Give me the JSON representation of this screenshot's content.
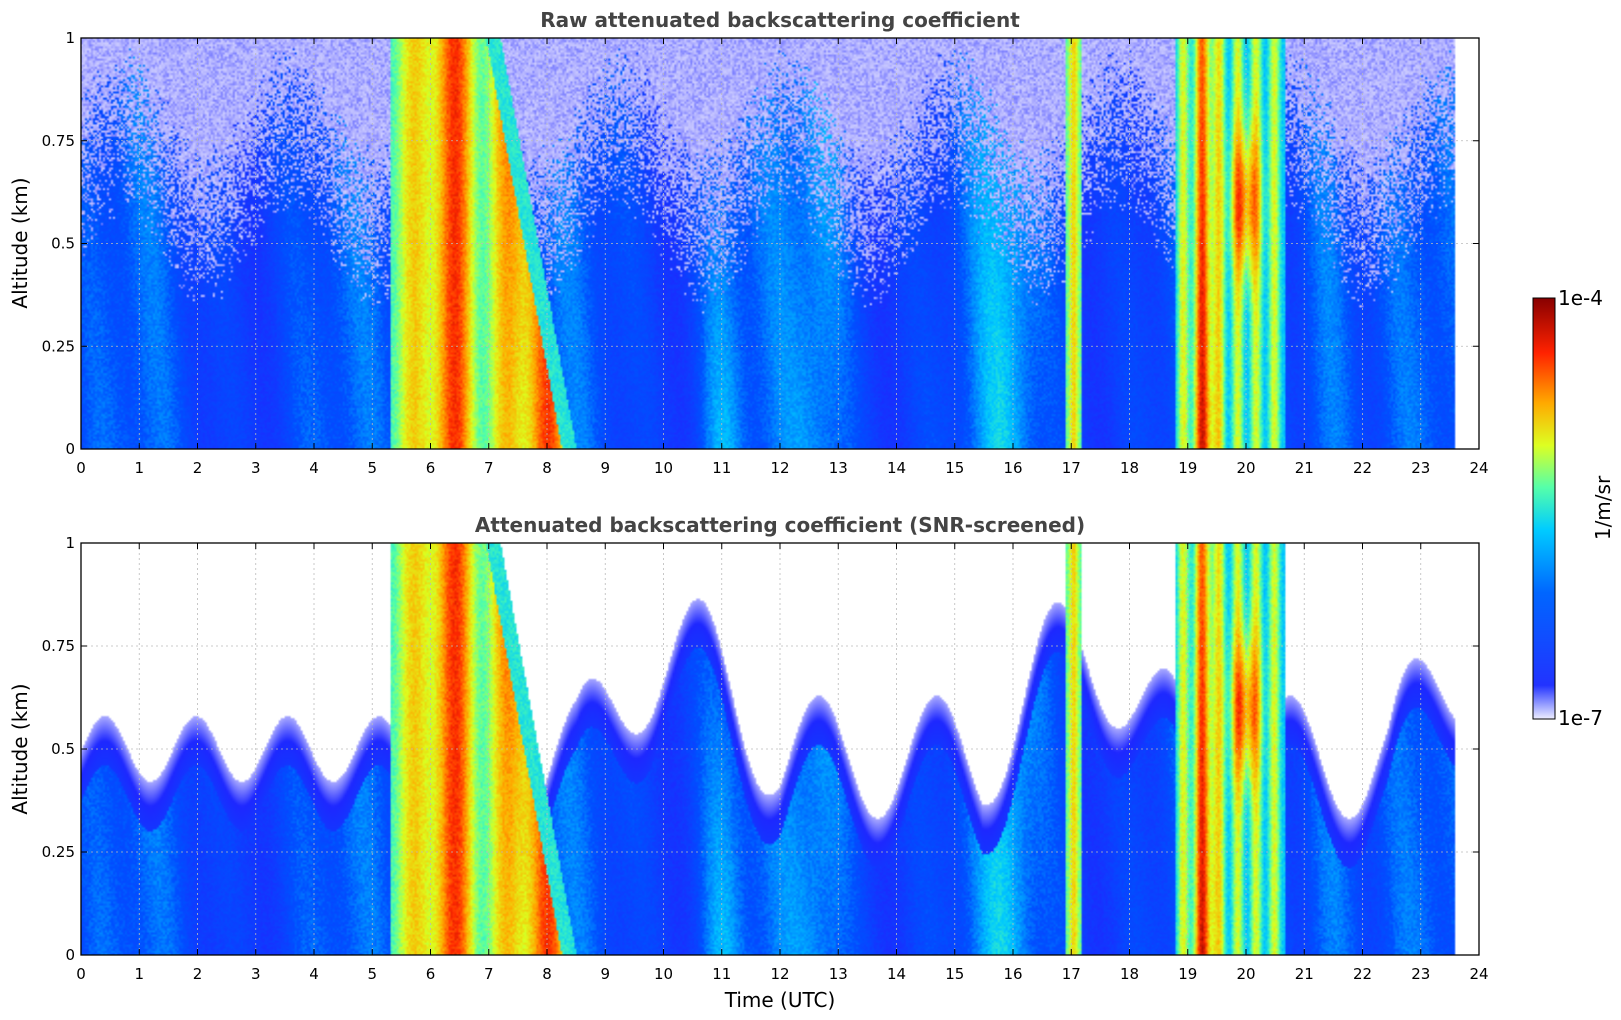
{
  "chart_data": [
    {
      "type": "heatmap",
      "title": "Raw attenuated backscattering coefficient",
      "xlabel": "",
      "ylabel": "Altitude (km)",
      "xlim": [
        0,
        24
      ],
      "ylim": [
        0,
        1
      ],
      "x_ticks": [
        "0",
        "1",
        "2",
        "3",
        "4",
        "5",
        "6",
        "7",
        "8",
        "9",
        "10",
        "11",
        "12",
        "13",
        "14",
        "15",
        "16",
        "17",
        "18",
        "19",
        "20",
        "21",
        "22",
        "23",
        "24"
      ],
      "y_ticks": [
        "0",
        "0.25",
        "0.5",
        "0.75",
        "1"
      ],
      "y_tick_values": [
        0,
        0.25,
        0.5,
        0.75,
        1
      ],
      "data_end_hour": 23.6,
      "screened": false,
      "grid": true
    },
    {
      "type": "heatmap",
      "title": "Attenuated backscattering coefficient (SNR-screened)",
      "xlabel": "Time (UTC)",
      "ylabel": "Altitude (km)",
      "xlim": [
        0,
        24
      ],
      "ylim": [
        0,
        1
      ],
      "x_ticks": [
        "0",
        "1",
        "2",
        "3",
        "4",
        "5",
        "6",
        "7",
        "8",
        "9",
        "10",
        "11",
        "12",
        "13",
        "14",
        "15",
        "16",
        "17",
        "18",
        "19",
        "20",
        "21",
        "22",
        "23",
        "24"
      ],
      "y_ticks": [
        "0",
        "0.25",
        "0.5",
        "0.75",
        "1"
      ],
      "y_tick_values": [
        0,
        0.25,
        0.5,
        0.75,
        1
      ],
      "data_end_hour": 23.6,
      "screened": true,
      "grid": true
    }
  ],
  "colorbar": {
    "label": "1/m/sr",
    "max_label": "1e-4",
    "min_label": "1e-7",
    "colormap": "jet"
  },
  "features": {
    "cloud_bands_hours": [
      [
        5.3,
        8.5
      ],
      [
        16.9,
        17.2
      ],
      [
        18.8,
        20.7
      ]
    ],
    "peak_intensity_hours": [
      6.3,
      7.8,
      19.3,
      20.0
    ]
  }
}
